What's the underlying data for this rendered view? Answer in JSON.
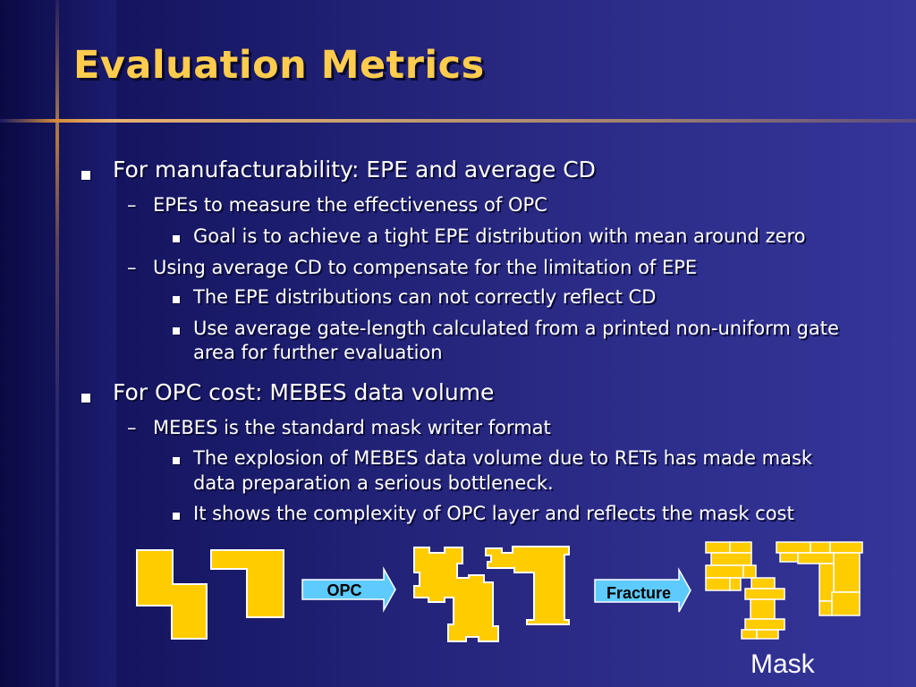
{
  "slide": {
    "title": "Evaluation Metrics",
    "bullets": [
      {
        "text": "For manufacturability: EPE and average CD",
        "sub": [
          {
            "text": "EPEs to measure the effectiveness of OPC",
            "sub": [
              "Goal is to achieve a tight EPE distribution with mean around zero"
            ]
          },
          {
            "text": "Using average CD to compensate for the limitation of EPE",
            "sub": [
              "The EPE distributions can not correctly reflect CD",
              "Use average gate-length calculated from a printed non-uniform gate",
              "area for further evaluation"
            ]
          }
        ]
      },
      {
        "text": "For OPC cost: MEBES data volume",
        "sub": [
          {
            "text": "MEBES is the standard mask writer format",
            "sub": [
              "The explosion of MEBES data volume due to RETs has made mask",
              "data preparation a serious bottleneck.",
              "It shows the complexity of OPC layer and reflects the mask cost"
            ]
          }
        ]
      }
    ]
  },
  "diagram": {
    "arrow1_label": "OPC",
    "arrow2_label": "Fracture",
    "mask_label": "Mask"
  },
  "colors": {
    "background": "#23237a",
    "title": "#ffcc4d",
    "shape_fill": "#ffcc00",
    "arrow_fill": "#5ecbff",
    "accent_line": "#d08a3a"
  }
}
